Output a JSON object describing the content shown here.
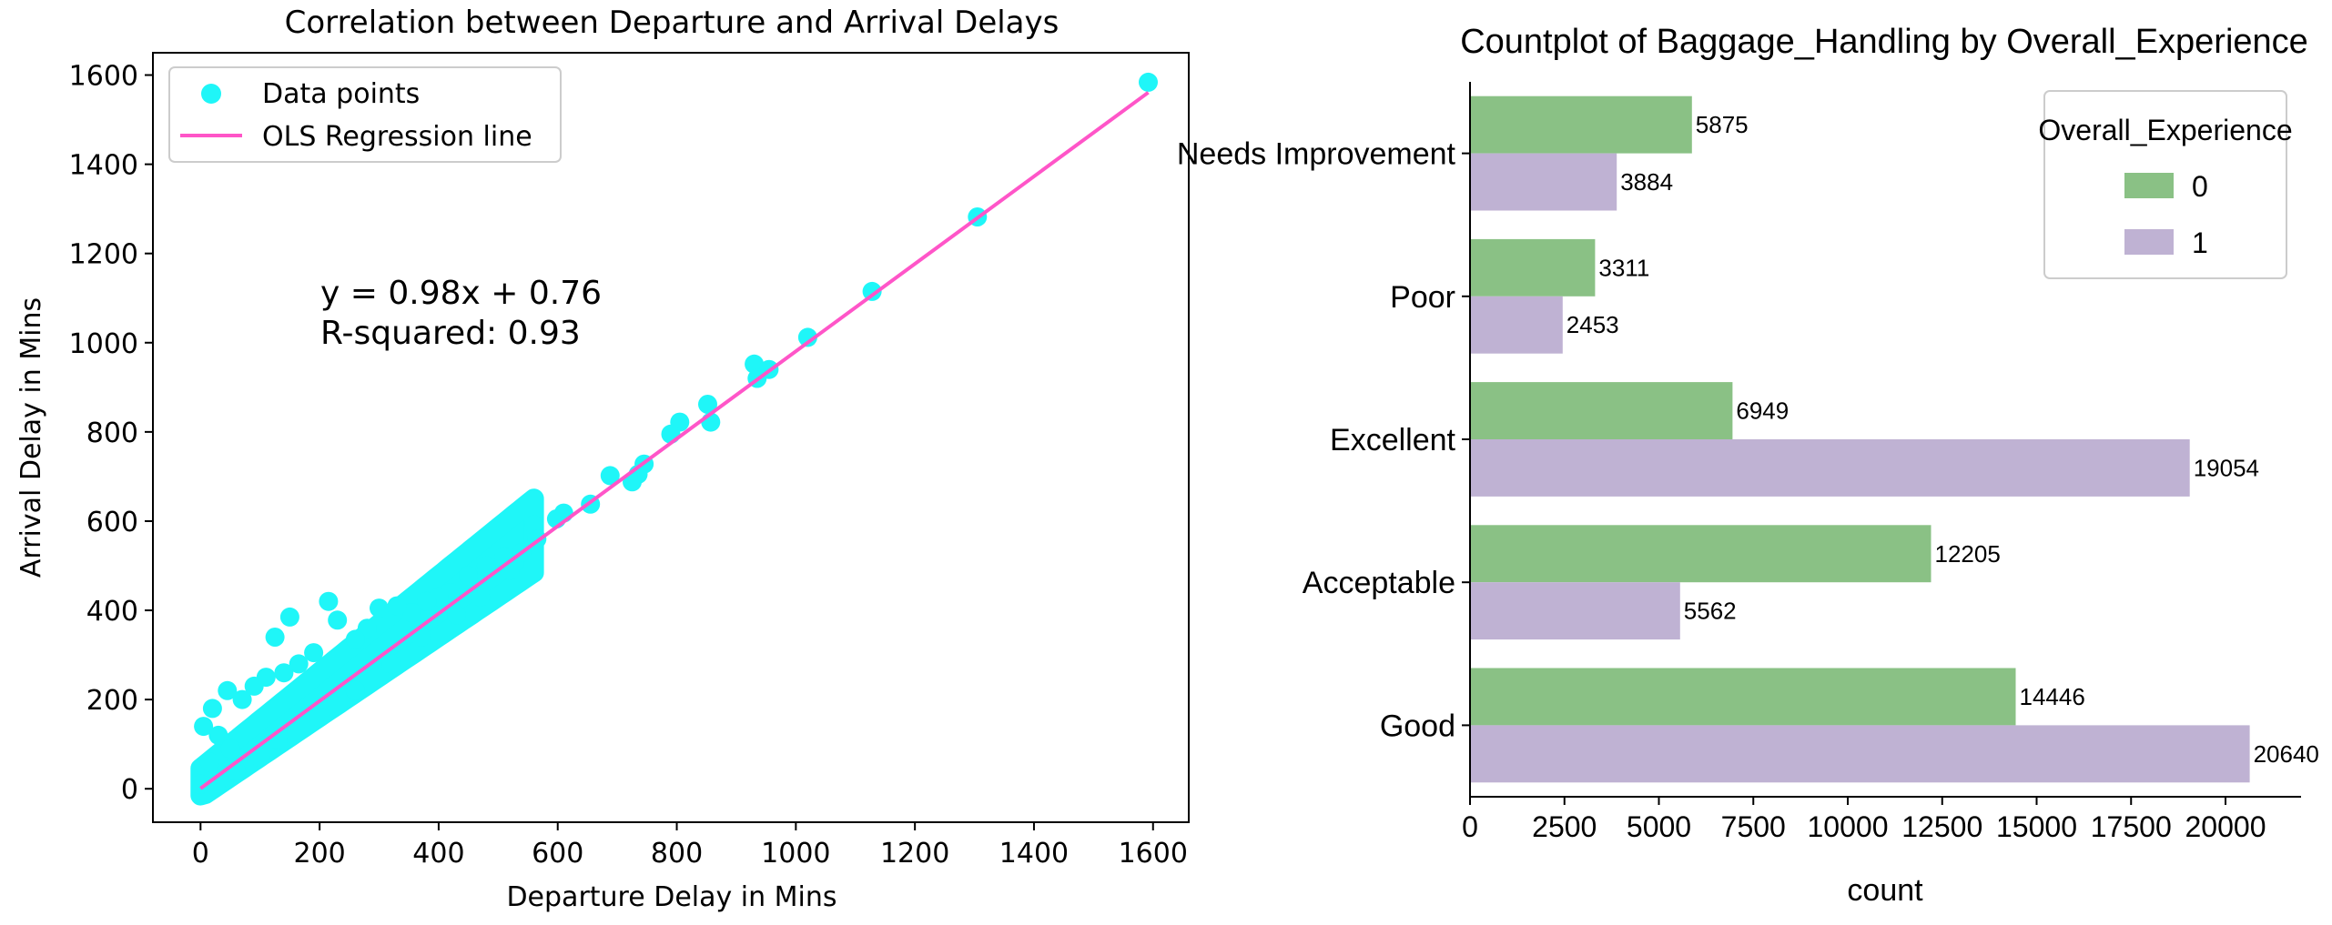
{
  "chart_data": [
    {
      "type": "scatter",
      "title": "Correlation between Departure and Arrival Delays",
      "xlabel": "Departure Delay in Mins",
      "ylabel": "Arrival Delay in Mins",
      "xlim": [
        -80,
        1660
      ],
      "ylim": [
        -75,
        1650
      ],
      "xticks": [
        0,
        200,
        400,
        600,
        800,
        1000,
        1200,
        1400,
        1600
      ],
      "yticks": [
        0,
        200,
        400,
        600,
        800,
        1000,
        1200,
        1400,
        1600
      ],
      "grid": false,
      "legend_position": "top-left",
      "annotation_lines": [
        "y = 0.98x + 0.76",
        "R-squared: 0.93"
      ],
      "series": [
        {
          "name": "Data points",
          "kind": "scatter",
          "color": "#1ff6f8",
          "points": [
            [
              1592,
              1584
            ],
            [
              1305,
              1282
            ],
            [
              1128,
              1115
            ],
            [
              1020,
              1012
            ],
            [
              930,
              952
            ],
            [
              955,
              940
            ],
            [
              935,
              920
            ],
            [
              852,
              862
            ],
            [
              857,
              822
            ],
            [
              805,
              822
            ],
            [
              790,
              795
            ],
            [
              745,
              728
            ],
            [
              735,
              705
            ],
            [
              725,
              688
            ],
            [
              688,
              702
            ],
            [
              655,
              638
            ],
            [
              610,
              618
            ],
            [
              598,
              605
            ],
            [
              560,
              592
            ],
            [
              565,
              560
            ],
            [
              540,
              530
            ],
            [
              510,
              520
            ],
            [
              480,
              500
            ],
            [
              450,
              478
            ],
            [
              420,
              440
            ],
            [
              400,
              430
            ],
            [
              380,
              420
            ],
            [
              355,
              395
            ],
            [
              330,
              410
            ],
            [
              300,
              405
            ],
            [
              280,
              360
            ],
            [
              260,
              335
            ],
            [
              215,
              420
            ],
            [
              230,
              378
            ],
            [
              150,
              385
            ],
            [
              125,
              340
            ],
            [
              190,
              305
            ],
            [
              165,
              280
            ],
            [
              140,
              260
            ],
            [
              110,
              250
            ],
            [
              90,
              230
            ],
            [
              45,
              220
            ],
            [
              70,
              200
            ],
            [
              20,
              180
            ],
            [
              5,
              140
            ],
            [
              30,
              120
            ],
            [
              50,
              90
            ],
            [
              80,
              60
            ],
            [
              100,
              70
            ],
            [
              130,
              110
            ],
            [
              200,
              160
            ],
            [
              260,
              220
            ],
            [
              320,
              280
            ],
            [
              370,
              340
            ],
            [
              430,
              390
            ],
            [
              470,
              430
            ],
            [
              520,
              490
            ],
            [
              10,
              30
            ],
            [
              40,
              20
            ],
            [
              60,
              40
            ],
            [
              15,
              60
            ],
            [
              0,
              10
            ],
            [
              25,
              5
            ]
          ]
        },
        {
          "name": "OLS Regression line",
          "kind": "line",
          "color": "#ff55c8",
          "slope": 0.98,
          "intercept": 0.76,
          "x_range": [
            0,
            1592
          ]
        }
      ]
    },
    {
      "type": "bar",
      "orientation": "horizontal",
      "title": "Countplot of Baggage_Handling by Overall_Experience",
      "xlabel": "count",
      "ylabel": "",
      "categories": [
        "Needs Improvement",
        "Poor",
        "Excellent",
        "Acceptable",
        "Good"
      ],
      "xlim": [
        0,
        22000
      ],
      "xticks": [
        0,
        2500,
        5000,
        7500,
        10000,
        12500,
        15000,
        17500,
        20000
      ],
      "grid": false,
      "legend_title": "Overall_Experience",
      "legend_position": "top-right",
      "series": [
        {
          "name": "0",
          "color": "#8ac185",
          "values": [
            5875,
            3311,
            6949,
            12205,
            14446
          ]
        },
        {
          "name": "1",
          "color": "#bfb2d3",
          "values": [
            3884,
            2453,
            19054,
            5562,
            20640
          ]
        }
      ]
    }
  ]
}
